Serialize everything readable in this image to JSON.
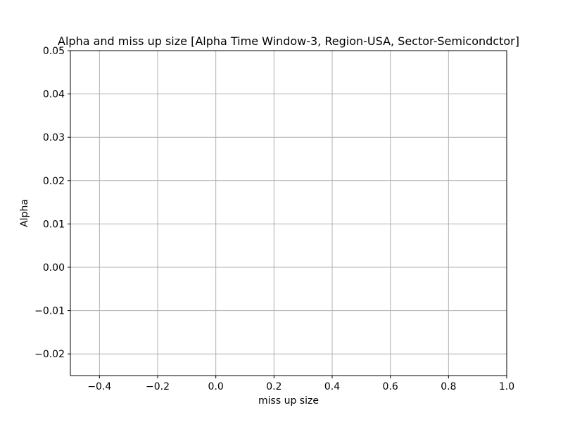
{
  "chart_data": {
    "type": "scatter",
    "title": "Alpha and miss up size [Alpha Time Window-3, Region-USA, Sector-Semicondctor]",
    "xlabel": "miss up size",
    "ylabel": "Alpha",
    "xlim": [
      -0.5,
      1.0
    ],
    "ylim": [
      -0.025,
      0.05
    ],
    "xticks": [
      -0.4,
      -0.2,
      0.0,
      0.2,
      0.4,
      0.6,
      0.8,
      1.0
    ],
    "xtick_labels": [
      "−0.4",
      "−0.2",
      "0.0",
      "0.2",
      "0.4",
      "0.6",
      "0.8",
      "1.0"
    ],
    "yticks": [
      -0.02,
      -0.01,
      0.0,
      0.01,
      0.02,
      0.03,
      0.04,
      0.05
    ],
    "ytick_labels": [
      "−0.02",
      "−0.01",
      "0.00",
      "0.01",
      "0.02",
      "0.03",
      "0.04",
      "0.05"
    ],
    "grid": true,
    "series": [
      {
        "x": [],
        "y": []
      }
    ]
  }
}
